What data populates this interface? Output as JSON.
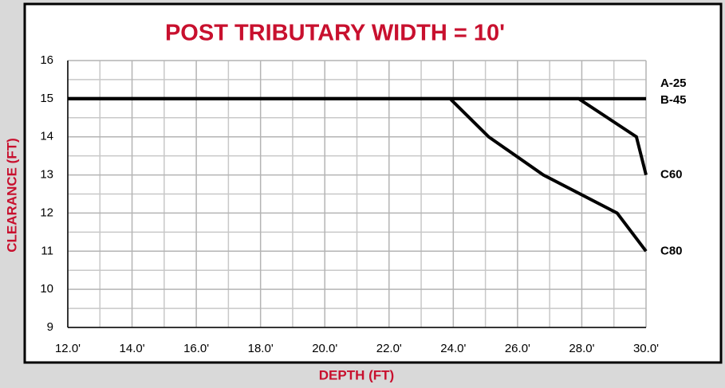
{
  "chart_data": {
    "type": "line",
    "title": "POST TRIBUTARY WIDTH = 10'",
    "x_label": "DEPTH (FT)",
    "y_label": "CLEARANCE  (FT)",
    "xlim": [
      12,
      30
    ],
    "ylim": [
      9,
      16
    ],
    "xticks": [
      {
        "value": 12,
        "label": "12.0'"
      },
      {
        "value": 14,
        "label": "14.0'"
      },
      {
        "value": 16,
        "label": "16.0'"
      },
      {
        "value": 18,
        "label": "18.0'"
      },
      {
        "value": 20,
        "label": "20.0'"
      },
      {
        "value": 22,
        "label": "22.0'"
      },
      {
        "value": 24,
        "label": "24.0'"
      },
      {
        "value": 26,
        "label": "26.0'"
      },
      {
        "value": 28,
        "label": "28.0'"
      },
      {
        "value": 30,
        "label": "30.0'"
      }
    ],
    "yticks": [
      9,
      10,
      11,
      12,
      13,
      14,
      15,
      16
    ],
    "x_minor_ticks": [
      13,
      15,
      17,
      19,
      21,
      23,
      25,
      27,
      29
    ],
    "y_minor_ticks": [
      9.5,
      10.5,
      11.5,
      12.5,
      13.5,
      14.5,
      15.5
    ],
    "grid": true,
    "series": [
      {
        "name": "A-25",
        "color": "#000000",
        "x": [
          12,
          30
        ],
        "values": [
          15,
          15
        ]
      },
      {
        "name": "B-45",
        "color": "#000000",
        "x": [
          12,
          30
        ],
        "values": [
          15,
          15
        ]
      },
      {
        "name": "C60",
        "color": "#000000",
        "x": [
          12,
          27.9,
          29.7,
          30
        ],
        "values": [
          15,
          15,
          14,
          13
        ]
      },
      {
        "name": "C80",
        "color": "#000000",
        "x": [
          12,
          23.9,
          25.1,
          26.8,
          29.1,
          30
        ],
        "values": [
          15,
          15,
          14,
          13,
          12,
          11
        ]
      }
    ]
  }
}
